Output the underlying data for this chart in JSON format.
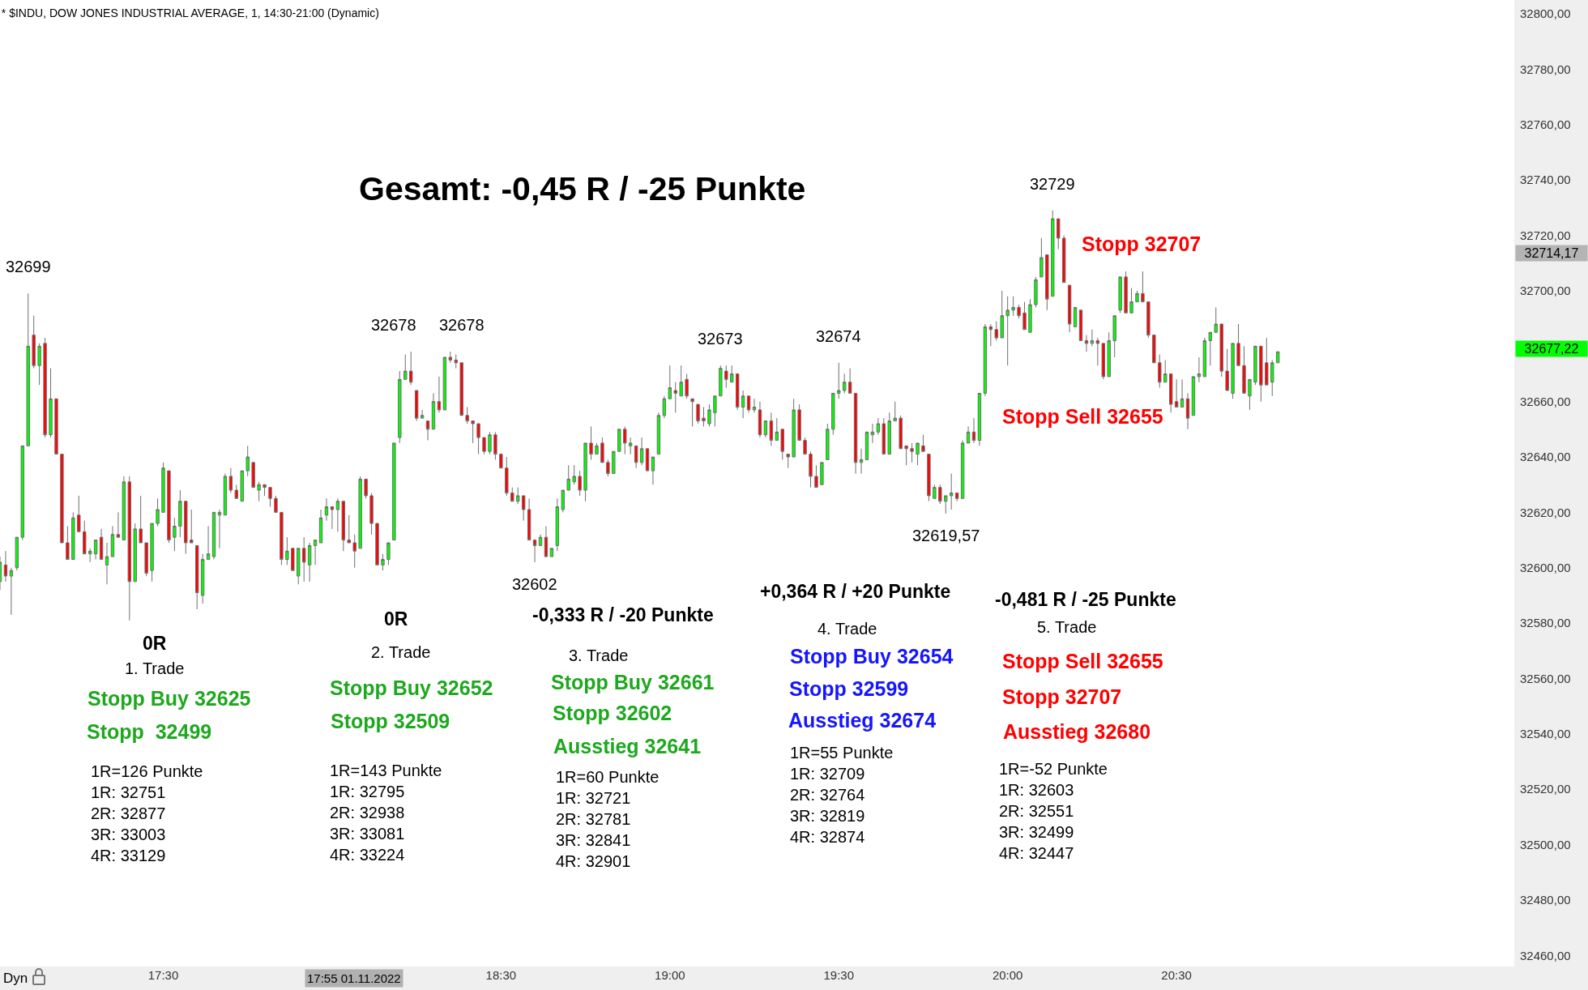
{
  "chart_data": {
    "type": "candlestick",
    "title": "* $INDU, DOW JONES INDUSTRIAL AVERAGE, 1, 14:30-21:00 (Dynamic)",
    "x": [
      "2022-11-01T17:01",
      "2022-11-01T17:02",
      "2022-11-01T17:03",
      "2022-11-01T17:04",
      "2022-11-01T17:05",
      "2022-11-01T17:06",
      "2022-11-01T17:07",
      "2022-11-01T17:08",
      "2022-11-01T17:09",
      "2022-11-01T17:10",
      "2022-11-01T17:11",
      "2022-11-01T17:12",
      "2022-11-01T17:13",
      "2022-11-01T17:14",
      "2022-11-01T17:15",
      "2022-11-01T17:16",
      "2022-11-01T17:17",
      "2022-11-01T17:18",
      "2022-11-01T17:19",
      "2022-11-01T17:20",
      "2022-11-01T17:21",
      "2022-11-01T17:22",
      "2022-11-01T17:23",
      "2022-11-01T17:24",
      "2022-11-01T17:25",
      "2022-11-01T17:26",
      "2022-11-01T17:27",
      "2022-11-01T17:28",
      "2022-11-01T17:29",
      "2022-11-01T17:30",
      "2022-11-01T17:31",
      "2022-11-01T17:32",
      "2022-11-01T17:33",
      "2022-11-01T17:34",
      "2022-11-01T17:35",
      "2022-11-01T17:36",
      "2022-11-01T17:37",
      "2022-11-01T17:38",
      "2022-11-01T17:39",
      "2022-11-01T17:40",
      "2022-11-01T17:41",
      "2022-11-01T17:42",
      "2022-11-01T17:43",
      "2022-11-01T17:44",
      "2022-11-01T17:45",
      "2022-11-01T17:46",
      "2022-11-01T17:47",
      "2022-11-01T17:48",
      "2022-11-01T17:49",
      "2022-11-01T17:50",
      "2022-11-01T17:51",
      "2022-11-01T17:52",
      "2022-11-01T17:53",
      "2022-11-01T17:54",
      "2022-11-01T17:55",
      "2022-11-01T17:56",
      "2022-11-01T17:57",
      "2022-11-01T17:58",
      "2022-11-01T17:59",
      "2022-11-01T18:00",
      "2022-11-01T18:01",
      "2022-11-01T18:02",
      "2022-11-01T18:03",
      "2022-11-01T18:04",
      "2022-11-01T18:05",
      "2022-11-01T18:06",
      "2022-11-01T18:07",
      "2022-11-01T18:08",
      "2022-11-01T18:09",
      "2022-11-01T18:10",
      "2022-11-01T18:11",
      "2022-11-01T18:12",
      "2022-11-01T18:13",
      "2022-11-01T18:14",
      "2022-11-01T18:15",
      "2022-11-01T18:16",
      "2022-11-01T18:17",
      "2022-11-01T18:18",
      "2022-11-01T18:19",
      "2022-11-01T18:20",
      "2022-11-01T18:21",
      "2022-11-01T18:22",
      "2022-11-01T18:23",
      "2022-11-01T18:24",
      "2022-11-01T18:25",
      "2022-11-01T18:26",
      "2022-11-01T18:27",
      "2022-11-01T18:28",
      "2022-11-01T18:29",
      "2022-11-01T18:30",
      "2022-11-01T18:31",
      "2022-11-01T18:32",
      "2022-11-01T18:33",
      "2022-11-01T18:34",
      "2022-11-01T18:35",
      "2022-11-01T18:36",
      "2022-11-01T18:37",
      "2022-11-01T18:38",
      "2022-11-01T18:39",
      "2022-11-01T18:40",
      "2022-11-01T18:41",
      "2022-11-01T18:42",
      "2022-11-01T18:43",
      "2022-11-01T18:44",
      "2022-11-01T18:45",
      "2022-11-01T18:46",
      "2022-11-01T18:47",
      "2022-11-01T18:48",
      "2022-11-01T18:49",
      "2022-11-01T18:50",
      "2022-11-01T18:51",
      "2022-11-01T18:52",
      "2022-11-01T18:53",
      "2022-11-01T18:54",
      "2022-11-01T18:55",
      "2022-11-01T18:56",
      "2022-11-01T18:57",
      "2022-11-01T18:58",
      "2022-11-01T18:59",
      "2022-11-01T19:00",
      "2022-11-01T19:01",
      "2022-11-01T19:02",
      "2022-11-01T19:03",
      "2022-11-01T19:04",
      "2022-11-01T19:05",
      "2022-11-01T19:06",
      "2022-11-01T19:07",
      "2022-11-01T19:08",
      "2022-11-01T19:09",
      "2022-11-01T19:10",
      "2022-11-01T19:11",
      "2022-11-01T19:12",
      "2022-11-01T19:13",
      "2022-11-01T19:14",
      "2022-11-01T19:15",
      "2022-11-01T19:16",
      "2022-11-01T19:17",
      "2022-11-01T19:18",
      "2022-11-01T19:19",
      "2022-11-01T19:20",
      "2022-11-01T19:21",
      "2022-11-01T19:22",
      "2022-11-01T19:23",
      "2022-11-01T19:24",
      "2022-11-01T19:25",
      "2022-11-01T19:26",
      "2022-11-01T19:27",
      "2022-11-01T19:28",
      "2022-11-01T19:29",
      "2022-11-01T19:30",
      "2022-11-01T19:31",
      "2022-11-01T19:32",
      "2022-11-01T19:33",
      "2022-11-01T19:34",
      "2022-11-01T19:35",
      "2022-11-01T19:36",
      "2022-11-01T19:37",
      "2022-11-01T19:38",
      "2022-11-01T19:39",
      "2022-11-01T19:40",
      "2022-11-01T19:41",
      "2022-11-01T19:42",
      "2022-11-01T19:43",
      "2022-11-01T19:44",
      "2022-11-01T19:45",
      "2022-11-01T19:46",
      "2022-11-01T19:47",
      "2022-11-01T19:48",
      "2022-11-01T19:49",
      "2022-11-01T19:50",
      "2022-11-01T19:51",
      "2022-11-01T19:52",
      "2022-11-01T19:53",
      "2022-11-01T19:54",
      "2022-11-01T19:55",
      "2022-11-01T19:56",
      "2022-11-01T19:57",
      "2022-11-01T19:58",
      "2022-11-01T19:59",
      "2022-11-01T20:00",
      "2022-11-01T20:01",
      "2022-11-01T20:02",
      "2022-11-01T20:03",
      "2022-11-01T20:04",
      "2022-11-01T20:05",
      "2022-11-01T20:06",
      "2022-11-01T20:07",
      "2022-11-01T20:08",
      "2022-11-01T20:09",
      "2022-11-01T20:10",
      "2022-11-01T20:11",
      "2022-11-01T20:12",
      "2022-11-01T20:13",
      "2022-11-01T20:14",
      "2022-11-01T20:15",
      "2022-11-01T20:16",
      "2022-11-01T20:17",
      "2022-11-01T20:18",
      "2022-11-01T20:19",
      "2022-11-01T20:20",
      "2022-11-01T20:21",
      "2022-11-01T20:22",
      "2022-11-01T20:23",
      "2022-11-01T20:24",
      "2022-11-01T20:25",
      "2022-11-01T20:26",
      "2022-11-01T20:27",
      "2022-11-01T20:28",
      "2022-11-01T20:29",
      "2022-11-01T20:30",
      "2022-11-01T20:31",
      "2022-11-01T20:32",
      "2022-11-01T20:33",
      "2022-11-01T20:34",
      "2022-11-01T20:35",
      "2022-11-01T20:36",
      "2022-11-01T20:37",
      "2022-11-01T20:38",
      "2022-11-01T20:39",
      "2022-11-01T20:40",
      "2022-11-01T20:41",
      "2022-11-01T20:42",
      "2022-11-01T20:43",
      "2022-11-01T20:44",
      "2022-11-01T20:45",
      "2022-11-01T20:46",
      "2022-11-01T20:47",
      "2022-11-01T20:48"
    ],
    "ohlc": [
      [
        32595,
        32604,
        32592,
        32602
      ],
      [
        32601,
        32606,
        32595,
        32597
      ],
      [
        32597,
        32600,
        32583,
        32599
      ],
      [
        32600,
        32611,
        32599,
        32611
      ],
      [
        32611,
        32644,
        32610,
        32644
      ],
      [
        32644,
        32699,
        32644,
        32680
      ],
      [
        32684,
        32691,
        32672,
        32673
      ],
      [
        32673,
        32681,
        32666,
        32680
      ],
      [
        32681,
        32683,
        32647,
        32648
      ],
      [
        32648,
        32672,
        32647,
        32661
      ],
      [
        32661,
        32661,
        32641,
        32641
      ],
      [
        32641,
        32641,
        32609,
        32609
      ],
      [
        32609,
        32615,
        32603,
        32603
      ],
      [
        32603,
        32620,
        32603,
        32618
      ],
      [
        32619,
        32626,
        32613,
        32613
      ],
      [
        32613,
        32617,
        32605,
        32605
      ],
      [
        32605,
        32607,
        32602,
        32606
      ],
      [
        32605,
        32610,
        32603,
        32610
      ],
      [
        32611,
        32614,
        32603,
        32603
      ],
      [
        32601,
        32609,
        32594,
        32604
      ],
      [
        32604,
        32615,
        32604,
        32612
      ],
      [
        32612,
        32620,
        32611,
        32611
      ],
      [
        32610,
        32633,
        32610,
        32631
      ],
      [
        32631,
        32633,
        32581,
        32595
      ],
      [
        32595,
        32616,
        32595,
        32614
      ],
      [
        32614,
        32626,
        32609,
        32609
      ],
      [
        32609,
        32609,
        32597,
        32598
      ],
      [
        32599,
        32616,
        32595,
        32616
      ],
      [
        32616,
        32625,
        32615,
        32621
      ],
      [
        32620,
        32638,
        32620,
        32636
      ],
      [
        32635,
        32635,
        32609,
        32610
      ],
      [
        32611,
        32618,
        32606,
        32615
      ],
      [
        32615,
        32628,
        32611,
        32624
      ],
      [
        32624,
        32624,
        32605,
        32609
      ],
      [
        32610,
        32621,
        32609,
        32609
      ],
      [
        32608,
        32608,
        32585,
        32591
      ],
      [
        32590,
        32605,
        32587,
        32603
      ],
      [
        32603,
        32615,
        32603,
        32605
      ],
      [
        32604,
        32620,
        32603,
        32620
      ],
      [
        32619,
        32621,
        32607,
        32620
      ],
      [
        32619,
        32634,
        32619,
        32633
      ],
      [
        32633,
        32636,
        32627,
        32628
      ],
      [
        32628,
        32630,
        32625,
        32625
      ],
      [
        32624,
        32635,
        32624,
        32635
      ],
      [
        32635,
        32644,
        32633,
        32640
      ],
      [
        32638,
        32638,
        32629,
        32629
      ],
      [
        32628,
        32631,
        32624,
        32630
      ],
      [
        32630,
        32630,
        32626,
        32629
      ],
      [
        32629,
        32629,
        32622,
        32625
      ],
      [
        32625,
        32626,
        32620,
        32620
      ],
      [
        32620,
        32620,
        32601,
        32603
      ],
      [
        32603,
        32611,
        32601,
        32606
      ],
      [
        32607,
        32607,
        32599,
        32599
      ],
      [
        32597,
        32607,
        32594,
        32607
      ],
      [
        32607,
        32611,
        32595,
        32602
      ],
      [
        32601,
        32609,
        32595,
        32608
      ],
      [
        32608,
        32610,
        32601,
        32610
      ],
      [
        32609,
        32621,
        32609,
        32618
      ],
      [
        32619,
        32625,
        32617,
        32622
      ],
      [
        32622,
        32622,
        32614,
        32621
      ],
      [
        32621,
        32625,
        32613,
        32624
      ],
      [
        32624,
        32624,
        32606,
        32610
      ],
      [
        32610,
        32619,
        32609,
        32609
      ],
      [
        32609,
        32612,
        32600,
        32606
      ],
      [
        32607,
        32633,
        32607,
        32632
      ],
      [
        32632,
        32632,
        32625,
        32626
      ],
      [
        32626,
        32627,
        32612,
        32616
      ],
      [
        32616,
        32616,
        32601,
        32601
      ],
      [
        32601,
        32605,
        32599,
        32603
      ],
      [
        32603,
        32609,
        32601,
        32609
      ],
      [
        32610,
        32645,
        32610,
        32645
      ],
      [
        32647,
        32671,
        32645,
        32668
      ],
      [
        32668,
        32677,
        32668,
        32671
      ],
      [
        32671,
        32678,
        32666,
        32667
      ],
      [
        32664,
        32664,
        32653,
        32654
      ],
      [
        32654,
        32657,
        32654,
        32655
      ],
      [
        32653,
        32653,
        32646,
        32650
      ],
      [
        32650,
        32663,
        32650,
        32660
      ],
      [
        32660,
        32669,
        32656,
        32657
      ],
      [
        32657,
        32676,
        32657,
        32676
      ],
      [
        32676,
        32678,
        32674,
        32675
      ],
      [
        32675,
        32677,
        32672,
        32674
      ],
      [
        32674,
        32674,
        32655,
        32655
      ],
      [
        32655,
        32658,
        32652,
        32653
      ],
      [
        32653,
        32653,
        32645,
        32652
      ],
      [
        32652,
        32652,
        32641,
        32647
      ],
      [
        32647,
        32647,
        32641,
        32642
      ],
      [
        32642,
        32649,
        32641,
        32648
      ],
      [
        32648,
        32649,
        32639,
        32641
      ],
      [
        32641,
        32641,
        32636,
        32636
      ],
      [
        32636,
        32640,
        32626,
        32627
      ],
      [
        32627,
        32629,
        32624,
        32624
      ],
      [
        32624,
        32629,
        32623,
        32626
      ],
      [
        32626,
        32626,
        32617,
        32621
      ],
      [
        32621,
        32625,
        32610,
        32610
      ],
      [
        32610,
        32610,
        32602,
        32608
      ],
      [
        32608,
        32612,
        32608,
        32611
      ],
      [
        32611,
        32615,
        32604,
        32604
      ],
      [
        32604,
        32607,
        32604,
        32607
      ],
      [
        32608,
        32625,
        32606,
        32622
      ],
      [
        32621,
        32628,
        32620,
        32628
      ],
      [
        32628,
        32637,
        32628,
        32632
      ],
      [
        32631,
        32637,
        32630,
        32633
      ],
      [
        32633,
        32635,
        32626,
        32628
      ],
      [
        32628,
        32645,
        32624,
        32645
      ],
      [
        32645,
        32651,
        32639,
        32641
      ],
      [
        32641,
        32645,
        32641,
        32644
      ],
      [
        32645,
        32647,
        32638,
        32638
      ],
      [
        32638,
        32639,
        32633,
        32634
      ],
      [
        32634,
        32642,
        32634,
        32642
      ],
      [
        32642,
        32650,
        32642,
        32650
      ],
      [
        32650,
        32651,
        32641,
        32645
      ],
      [
        32644,
        32647,
        32641,
        32645
      ],
      [
        32644,
        32644,
        32636,
        32638
      ],
      [
        32638,
        32647,
        32637,
        32643
      ],
      [
        32643,
        32643,
        32635,
        32635
      ],
      [
        32635,
        32640,
        32630,
        32640
      ],
      [
        32641,
        32656,
        32641,
        32655
      ],
      [
        32655,
        32662,
        32654,
        32661
      ],
      [
        32661,
        32673,
        32661,
        32665
      ],
      [
        32664,
        32667,
        32656,
        32663
      ],
      [
        32662,
        32673,
        32662,
        32667
      ],
      [
        32668,
        32670,
        32661,
        32662
      ],
      [
        32661,
        32661,
        32651,
        32660
      ],
      [
        32659,
        32659,
        32652,
        32653
      ],
      [
        32654,
        32658,
        32651,
        32653
      ],
      [
        32652,
        32659,
        32651,
        32657
      ],
      [
        32656,
        32662,
        32651,
        32662
      ],
      [
        32662,
        32673,
        32662,
        32672
      ],
      [
        32671,
        32673,
        32665,
        32668
      ],
      [
        32667,
        32673,
        32667,
        32670
      ],
      [
        32670,
        32670,
        32657,
        32658
      ],
      [
        32658,
        32664,
        32654,
        32662
      ],
      [
        32662,
        32662,
        32656,
        32657
      ],
      [
        32657,
        32661,
        32656,
        32658
      ],
      [
        32657,
        32660,
        32647,
        32648
      ],
      [
        32648,
        32653,
        32647,
        32653
      ],
      [
        32653,
        32656,
        32644,
        32646
      ],
      [
        32646,
        32654,
        32646,
        32649
      ],
      [
        32650,
        32650,
        32639,
        32642
      ],
      [
        32641,
        32641,
        32636,
        32640
      ],
      [
        32640,
        32661,
        32640,
        32657
      ],
      [
        32657,
        32659,
        32646,
        32646
      ],
      [
        32646,
        32647,
        32641,
        32641
      ],
      [
        32641,
        32642,
        32629,
        32633
      ],
      [
        32633,
        32637,
        32629,
        32629
      ],
      [
        32630,
        32638,
        32630,
        32638
      ],
      [
        32639,
        32652,
        32639,
        32650
      ],
      [
        32650,
        32663,
        32648,
        32663
      ],
      [
        32663,
        32674,
        32661,
        32664
      ],
      [
        32664,
        32670,
        32663,
        32667
      ],
      [
        32667,
        32672,
        32663,
        32663
      ],
      [
        32663,
        32663,
        32634,
        32638
      ],
      [
        32638,
        32643,
        32634,
        32639
      ],
      [
        32639,
        32649,
        32639,
        32649
      ],
      [
        32648,
        32652,
        32645,
        32649
      ],
      [
        32649,
        32654,
        32648,
        32652
      ],
      [
        32652,
        32654,
        32641,
        32641
      ],
      [
        32641,
        32656,
        32641,
        32653
      ],
      [
        32653,
        32660,
        32653,
        32654
      ],
      [
        32654,
        32655,
        32643,
        32643
      ],
      [
        32644,
        32644,
        32637,
        32643
      ],
      [
        32643,
        32645,
        32638,
        32642
      ],
      [
        32641,
        32645,
        32637,
        32645
      ],
      [
        32644,
        32648,
        32642,
        32642
      ],
      [
        32641,
        32641,
        32624,
        32626
      ],
      [
        32625,
        32630,
        32625,
        32629
      ],
      [
        32629,
        32630,
        32623,
        32624
      ],
      [
        32624,
        32626,
        32619.57,
        32626
      ],
      [
        32626,
        32634,
        32621,
        32627
      ],
      [
        32627,
        32627,
        32624,
        32625
      ],
      [
        32625,
        32646,
        32625,
        32645
      ],
      [
        32645,
        32651,
        32645,
        32649
      ],
      [
        32649,
        32654,
        32645,
        32646
      ],
      [
        32646,
        32663,
        32644,
        32663
      ],
      [
        32663,
        32688,
        32662,
        32687
      ],
      [
        32687,
        32688,
        32680,
        32686
      ],
      [
        32686,
        32689,
        32682,
        32683
      ],
      [
        32683,
        32700,
        32683,
        32691
      ],
      [
        32691,
        32698,
        32673,
        32693
      ],
      [
        32693,
        32698,
        32691,
        32694
      ],
      [
        32694,
        32695,
        32690,
        32691
      ],
      [
        32692,
        32696,
        32686,
        32686
      ],
      [
        32685,
        32697,
        32685,
        32695
      ],
      [
        32695,
        32705,
        32694,
        32704
      ],
      [
        32705,
        32719,
        32705,
        32712
      ],
      [
        32713,
        32713,
        32693,
        32697
      ],
      [
        32698,
        32729,
        32698,
        32726
      ],
      [
        32726,
        32726,
        32715,
        32719
      ],
      [
        32719,
        32720,
        32703,
        32703
      ],
      [
        32702,
        32702,
        32685,
        32688
      ],
      [
        32687,
        32694,
        32687,
        32694
      ],
      [
        32693,
        32693,
        32682,
        32682
      ],
      [
        32682,
        32684,
        32678,
        32681
      ],
      [
        32681,
        32686,
        32680,
        32682
      ],
      [
        32682,
        32683,
        32673,
        32681
      ],
      [
        32681,
        32681,
        32668,
        32669
      ],
      [
        32669,
        32685,
        32669,
        32682
      ],
      [
        32682,
        32691,
        32676,
        32691
      ],
      [
        32693,
        32705,
        32692,
        32705
      ],
      [
        32705,
        32707,
        32692,
        32692
      ],
      [
        32692,
        32701,
        32692,
        32696
      ],
      [
        32696,
        32700,
        32696,
        32699
      ],
      [
        32699,
        32707,
        32696,
        32696
      ],
      [
        32696,
        32696,
        32683,
        32684
      ],
      [
        32684,
        32684,
        32674,
        32674
      ],
      [
        32674,
        32677,
        32665,
        32667
      ],
      [
        32667,
        32675,
        32667,
        32670
      ],
      [
        32670,
        32670,
        32656,
        32659
      ],
      [
        32660,
        32668,
        32658,
        32658
      ],
      [
        32658,
        32668,
        32658,
        32661
      ],
      [
        32661,
        32663,
        32650,
        32654
      ],
      [
        32655,
        32669,
        32655,
        32669
      ],
      [
        32669,
        32676,
        32667,
        32670
      ],
      [
        32669,
        32683,
        32669,
        32682
      ],
      [
        32682,
        32685,
        32673,
        32685
      ],
      [
        32685,
        32694,
        32685,
        32688
      ],
      [
        32688,
        32688,
        32669,
        32671
      ],
      [
        32671,
        32679,
        32664,
        32664
      ],
      [
        32663,
        32681,
        32661,
        32681
      ],
      [
        32681,
        32688,
        32673,
        32673
      ],
      [
        32673,
        32680,
        32663,
        32663
      ],
      [
        32662,
        32668,
        32657,
        32668
      ],
      [
        32667,
        32680,
        32666,
        32680
      ],
      [
        32680,
        32680,
        32660,
        32666
      ],
      [
        32674,
        32683,
        32666,
        32666
      ],
      [
        32667,
        32675,
        32662,
        32674
      ],
      [
        32674,
        32678,
        32674,
        32678
      ]
    ],
    "xlim": [
      "2022-11-01T17:01",
      "2022-11-01T21:30"
    ],
    "xticks": [
      {
        "value": "2022-11-01T17:30",
        "label": "17:30"
      },
      {
        "value": "2022-11-01T18:30",
        "label": "18:30"
      },
      {
        "value": "2022-11-01T19:00",
        "label": "19:00"
      },
      {
        "value": "2022-11-01T19:30",
        "label": "19:30"
      },
      {
        "value": "2022-11-01T20:00",
        "label": "20:00"
      },
      {
        "value": "2022-11-01T20:30",
        "label": "20:30"
      }
    ],
    "ylim": [
      32456,
      32805
    ],
    "yticks": [
      {
        "value": 32460,
        "label": "32460,00"
      },
      {
        "value": 32480,
        "label": "32480,00"
      },
      {
        "value": 32500,
        "label": "32500,00"
      },
      {
        "value": 32520,
        "label": "32520,00"
      },
      {
        "value": 32540,
        "label": "32540,00"
      },
      {
        "value": 32560,
        "label": "32560,00"
      },
      {
        "value": 32580,
        "label": "32580,00"
      },
      {
        "value": 32600,
        "label": "32600,00"
      },
      {
        "value": 32620,
        "label": "32620,00"
      },
      {
        "value": 32640,
        "label": "32640,00"
      },
      {
        "value": 32660,
        "label": "32660,00"
      },
      {
        "value": 32700,
        "label": "32700,00"
      },
      {
        "value": 32720,
        "label": "32720,00"
      },
      {
        "value": 32740,
        "label": "32740,00"
      },
      {
        "value": 32760,
        "label": "32760,00"
      },
      {
        "value": 32780,
        "label": "32780,00"
      },
      {
        "value": 32800,
        "label": "32800,00"
      }
    ],
    "annotations": [
      "Gesamt: -0,45 R / -25 Punkte",
      "0R",
      "1. Trade",
      "Stopp Buy 32625",
      "Stopp  32499",
      "1R=126 Punkte\n1R: 32751\n2R: 32877\n3R: 33003\n4R: 33129",
      "0R",
      "2. Trade",
      "Stopp Buy 32652",
      "Stopp 32509",
      "1R=143 Punkte\n1R: 32795\n2R: 32938\n3R: 33081\n4R: 33224",
      "-0,333 R / -20 Punkte",
      "3. Trade",
      "Stopp Buy 32661",
      "Stopp 32602",
      "Ausstieg 32641",
      "1R=60 Punkte\n1R: 32721\n2R: 32781\n3R: 32841\n4R: 32901",
      "+0,364 R / +20 Punkte",
      "4. Trade",
      "Stopp Buy 32654",
      "Stopp 32599",
      "Ausstieg 32674",
      "1R=55 Punkte\n1R: 32709\n2R: 32764\n3R: 32819\n4R: 32874",
      "-0,481 R / -25 Punkte",
      "5. Trade",
      "Stopp Sell 32655",
      "Stopp 32707",
      "Ausstieg 32680",
      "1R=-52 Punkte\n1R: 32603\n2R: 32551\n3R: 32499\n4R: 32447",
      "Stopp 32707",
      "Stopp Sell 32655",
      {
        "text": "32699",
        "x": "2022-11-01T17:06",
        "y": 32699
      },
      {
        "text": "32678",
        "x": "2022-11-01T18:13",
        "y": 32678
      },
      {
        "text": "32678",
        "x": "2022-11-01T18:21",
        "y": 32678
      },
      {
        "text": "32602",
        "x": "2022-11-01T18:36",
        "y": 32602
      },
      {
        "text": "32673",
        "x": "2022-11-01T19:09",
        "y": 32673
      },
      {
        "text": "32674",
        "x": "2022-11-01T19:30",
        "y": 32674
      },
      {
        "text": "32619,57",
        "x": "2022-11-01T19:49",
        "y": 32619.57
      },
      {
        "text": "32729",
        "x": "2022-11-01T20:08",
        "y": 32729
      },
      "17:55 01.11.2022",
      "32714,17",
      "32677,22",
      "Dyn"
    ]
  }
}
